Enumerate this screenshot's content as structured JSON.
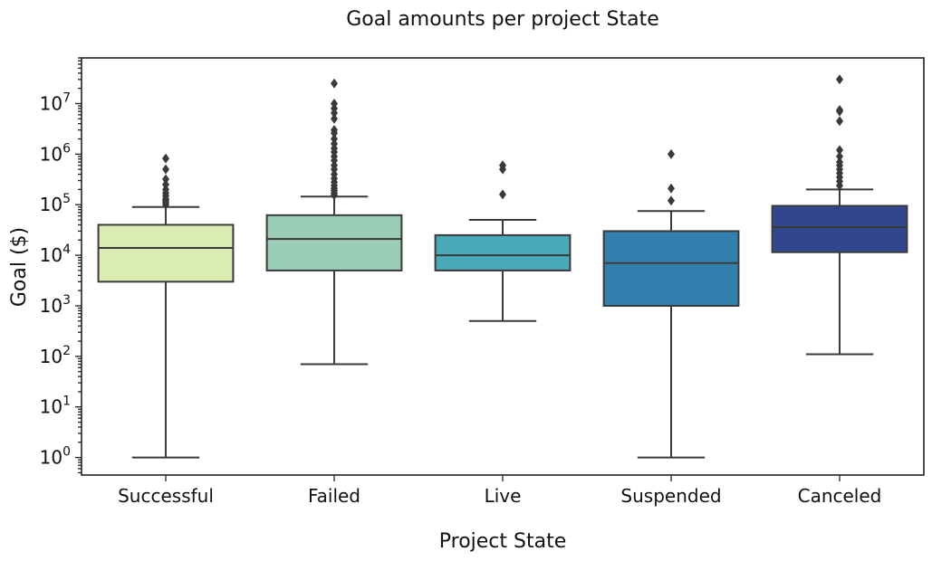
{
  "chart_data": {
    "type": "box",
    "title": "Goal amounts per project State",
    "xlabel": "Project State",
    "ylabel": "Goal ($)",
    "yscale": "log",
    "ylim": [
      0.45,
      80000000
    ],
    "y_ticks": [
      {
        "base": "10",
        "exp": "0",
        "value": 1
      },
      {
        "base": "10",
        "exp": "1",
        "value": 10
      },
      {
        "base": "10",
        "exp": "2",
        "value": 100
      },
      {
        "base": "10",
        "exp": "3",
        "value": 1000
      },
      {
        "base": "10",
        "exp": "4",
        "value": 10000
      },
      {
        "base": "10",
        "exp": "5",
        "value": 100000
      },
      {
        "base": "10",
        "exp": "6",
        "value": 1000000
      },
      {
        "base": "10",
        "exp": "7",
        "value": 10000000
      }
    ],
    "categories": [
      "Successful",
      "Failed",
      "Live",
      "Suspended",
      "Canceled"
    ],
    "boxes": [
      {
        "category": "Successful",
        "color": "#dcedb4",
        "whisker_low": 1,
        "q1": 3000,
        "median": 14000,
        "q3": 40000,
        "whisker_high": 90000,
        "fliers": [
          100000,
          110000,
          120000,
          130000,
          150000,
          170000,
          200000,
          250000,
          320000,
          500000,
          820000
        ]
      },
      {
        "category": "Failed",
        "color": "#9ccdb7",
        "whisker_low": 70,
        "q1": 5000,
        "median": 21000,
        "q3": 62000,
        "whisker_high": 145000,
        "fliers": [
          155000,
          170000,
          190000,
          210000,
          240000,
          280000,
          330000,
          400000,
          500000,
          600000,
          750000,
          900000,
          1100000,
          1300000,
          1600000,
          2000000,
          2600000,
          3000000,
          5000000,
          6500000,
          8000000,
          10000000,
          25000000
        ]
      },
      {
        "category": "Live",
        "color": "#4aa9b8",
        "whisker_low": 500,
        "q1": 5000,
        "median": 10000,
        "q3": 25000,
        "whisker_high": 50000,
        "fliers": [
          160000,
          500000,
          600000
        ]
      },
      {
        "category": "Suspended",
        "color": "#3280ae",
        "whisker_low": 1,
        "q1": 1000,
        "median": 7000,
        "q3": 30000,
        "whisker_high": 75000,
        "fliers": [
          120000,
          210000,
          1000000
        ]
      },
      {
        "category": "Canceled",
        "color": "#30478f",
        "whisker_low": 110,
        "q1": 11500,
        "median": 36000,
        "q3": 95000,
        "whisker_high": 200000,
        "fliers": [
          240000,
          290000,
          350000,
          420000,
          500000,
          600000,
          700000,
          900000,
          1200000,
          4500000,
          7000000,
          7500000,
          30000000
        ]
      }
    ]
  }
}
